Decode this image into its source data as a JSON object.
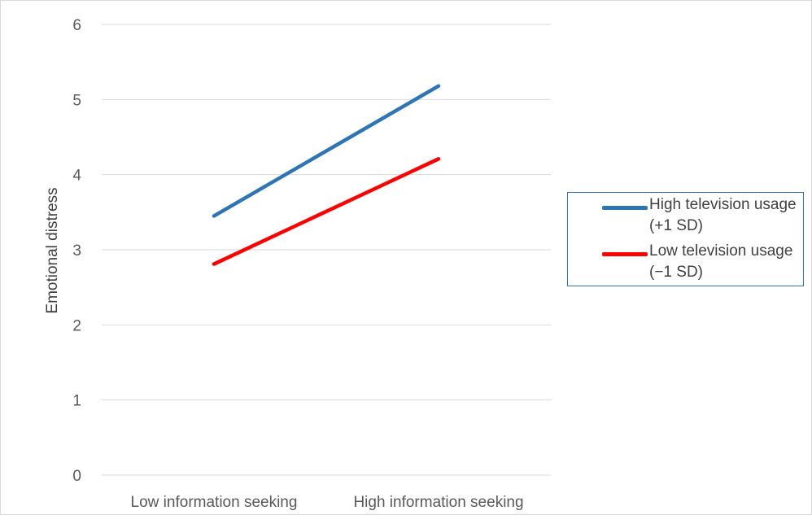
{
  "chart_data": {
    "type": "line",
    "title": "",
    "xlabel": "",
    "ylabel": "Emotional distress",
    "categories": [
      "Low information seeking",
      "High information seeking"
    ],
    "ylim": [
      0,
      6
    ],
    "yticks": [
      "0",
      "1",
      "2",
      "3",
      "4",
      "5",
      "6"
    ],
    "grid": true,
    "legend_position": "right",
    "series": [
      {
        "name": "High television usage (+1 SD)",
        "values": [
          3.45,
          5.18
        ],
        "color": "#2e75b6"
      },
      {
        "name": "Low television usage (−1 SD)",
        "values": [
          2.81,
          4.21
        ],
        "color": "#ff0000"
      }
    ]
  }
}
